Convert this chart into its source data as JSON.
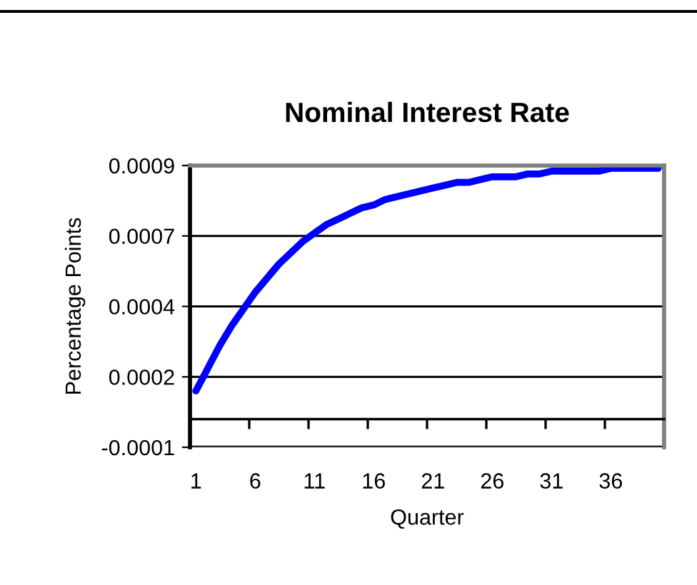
{
  "chart_data": {
    "type": "line",
    "title": "Nominal Interest Rate",
    "xlabel": "Quarter",
    "ylabel": "Percentage Points",
    "categories": [
      "1",
      null,
      null,
      null,
      null,
      "6",
      null,
      null,
      null,
      null,
      "11",
      null,
      null,
      null,
      null,
      "16",
      null,
      null,
      null,
      null,
      "21",
      null,
      null,
      null,
      null,
      "26",
      null,
      null,
      null,
      null,
      "31",
      null,
      null,
      null,
      null,
      "36",
      null,
      null,
      null,
      null
    ],
    "series": [
      {
        "color": "#0000ff",
        "values": [
          0.0001,
          0.00018,
          0.00026,
          0.00033,
          0.00039,
          0.00045,
          0.0005,
          0.00055,
          0.00059,
          0.00063,
          0.00066,
          0.00069,
          0.00071,
          0.00073,
          0.00075,
          0.00076,
          0.00078,
          0.00079,
          0.0008,
          0.00081,
          0.00082,
          0.00083,
          0.00084,
          0.00084,
          0.00085,
          0.00086,
          0.00086,
          0.00086,
          0.00087,
          0.00087,
          0.00088,
          0.00088,
          0.00088,
          0.00088,
          0.00088,
          0.00089,
          0.00089,
          0.00089,
          0.00089,
          0.00089
        ]
      }
    ],
    "ylim": [
      -0.0001,
      0.0009
    ],
    "yticks": [
      -0.0001,
      {
        "value": 0.00015,
        "label": "0.0002"
      },
      0.0004,
      {
        "value": 0.00065,
        "label": "0.0007"
      },
      0.0009
    ],
    "grid": "y",
    "marker": "none",
    "line_style": "solid"
  }
}
